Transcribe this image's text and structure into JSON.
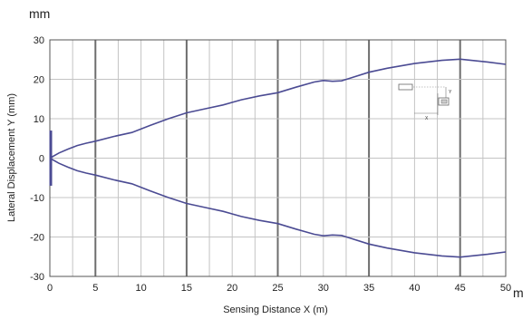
{
  "chart_data": {
    "type": "line",
    "xlabel": "Sensing Distance X (m)",
    "ylabel": "Lateral Displacement Y (mm)",
    "y_unit": "mm",
    "x_unit": "m",
    "xlim": [
      0,
      50
    ],
    "ylim": [
      -30,
      30
    ],
    "x_ticks": [
      "0",
      "5",
      "10",
      "15",
      "20",
      "25",
      "30",
      "35",
      "40",
      "45",
      "50"
    ],
    "y_ticks": [
      "30",
      "20",
      "10",
      "0",
      "-10",
      "-20",
      "-30"
    ],
    "grid": true,
    "line_color": "#4b4b93",
    "inset_labels": [
      "Y",
      "X"
    ],
    "series": [
      {
        "values_x": [
          0,
          1,
          2,
          3,
          4,
          5,
          7,
          9,
          11,
          13,
          15,
          17,
          19,
          21,
          23,
          25,
          27,
          29,
          30,
          31,
          32,
          35,
          37,
          40,
          43,
          45,
          48,
          50
        ],
        "values_y": [
          0,
          1.3,
          2.3,
          3.2,
          3.8,
          4.3,
          5.5,
          6.5,
          8.3,
          10.0,
          11.5,
          12.5,
          13.5,
          14.8,
          15.8,
          16.6,
          18.0,
          19.3,
          19.7,
          19.5,
          19.6,
          21.8,
          22.8,
          24.0,
          24.8,
          25.1,
          24.4,
          23.8
        ]
      },
      {
        "values_x": [
          0,
          1,
          2,
          3,
          4,
          5,
          7,
          9,
          11,
          13,
          15,
          17,
          19,
          21,
          23,
          25,
          27,
          29,
          30,
          31,
          32,
          35,
          37,
          40,
          43,
          45,
          48,
          50
        ],
        "values_y": [
          0,
          -1.3,
          -2.3,
          -3.2,
          -3.8,
          -4.3,
          -5.5,
          -6.5,
          -8.3,
          -10.0,
          -11.5,
          -12.5,
          -13.5,
          -14.8,
          -15.8,
          -16.6,
          -18.0,
          -19.3,
          -19.7,
          -19.5,
          -19.6,
          -21.8,
          -22.8,
          -24.0,
          -24.8,
          -25.1,
          -24.4,
          -23.8
        ]
      }
    ]
  }
}
